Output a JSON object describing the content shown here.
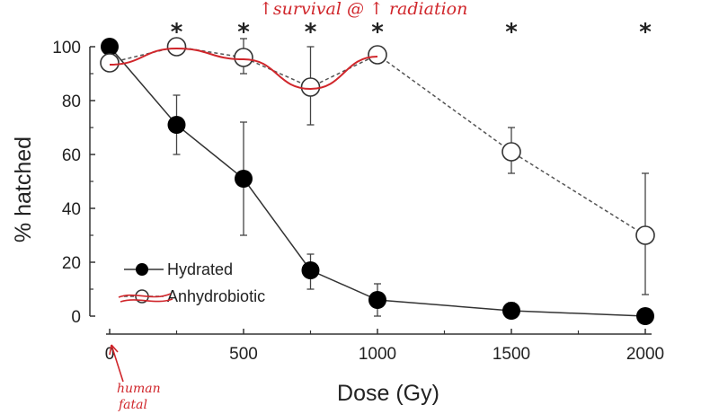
{
  "chart_data": {
    "type": "line",
    "xlabel": "Dose (Gy)",
    "ylabel": "% hatched",
    "xlim": [
      0,
      2000
    ],
    "ylim": [
      0,
      100
    ],
    "x_ticks": [
      "0",
      "500",
      "1000",
      "1500",
      "2000"
    ],
    "y_ticks": [
      "0",
      "20",
      "40",
      "60",
      "80",
      "100"
    ],
    "significance_markers": [
      {
        "x": 250,
        "label": "*"
      },
      {
        "x": 500,
        "label": "*"
      },
      {
        "x": 750,
        "label": "*"
      },
      {
        "x": 1000,
        "label": "*"
      },
      {
        "x": 1500,
        "label": "*"
      },
      {
        "x": 2000,
        "label": "*"
      }
    ],
    "legend": {
      "placement": "bottom-left"
    },
    "series": [
      {
        "name": "Hydrated",
        "marker": "filled-circle",
        "line": "solid",
        "color": "#000000",
        "x": [
          0,
          250,
          500,
          750,
          1000,
          1500,
          2000
        ],
        "y": [
          100,
          71,
          51,
          17,
          6,
          2,
          0
        ],
        "err_low": [
          null,
          60,
          30,
          10,
          0,
          0,
          null
        ],
        "err_high": [
          null,
          82,
          72,
          23,
          12,
          5,
          null
        ]
      },
      {
        "name": "Anhydrobiotic",
        "marker": "open-circle",
        "line": "dashed",
        "color": "#555555",
        "x": [
          0,
          250,
          500,
          750,
          1000,
          1500,
          2000
        ],
        "y": [
          94,
          100,
          96,
          85,
          97,
          61,
          30
        ],
        "err_low": [
          null,
          null,
          90,
          71,
          null,
          53,
          8
        ],
        "err_high": [
          null,
          null,
          103,
          100,
          null,
          70,
          53
        ]
      }
    ],
    "annotations": [
      {
        "text": "↑survival @ ↑ radiation",
        "color": "#d0262b"
      },
      {
        "text": "human",
        "color": "#d0262b"
      },
      {
        "text": "fatal",
        "color": "#d0262b"
      }
    ]
  }
}
